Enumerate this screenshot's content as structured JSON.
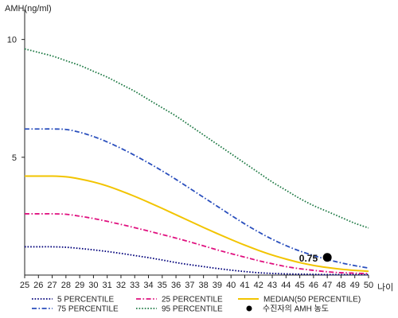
{
  "chart_data": {
    "type": "line",
    "ylabel": "AMH(ng/ml)",
    "xlabel": "나이",
    "xlim": [
      25,
      50
    ],
    "ylim": [
      0,
      11
    ],
    "yticks": [
      5,
      10
    ],
    "x": [
      25,
      26,
      27,
      28,
      29,
      30,
      31,
      32,
      33,
      34,
      35,
      36,
      37,
      38,
      39,
      40,
      41,
      42,
      43,
      44,
      45,
      46,
      47,
      48,
      49,
      50
    ],
    "grid": false,
    "legend_position": "bottom",
    "series": [
      {
        "name": "5 PERCENTILE",
        "color": "#00007a",
        "dash": "dotted",
        "values": [
          1.2,
          1.2,
          1.2,
          1.18,
          1.13,
          1.07,
          1.0,
          0.92,
          0.83,
          0.74,
          0.64,
          0.53,
          0.44,
          0.36,
          0.28,
          0.21,
          0.15,
          0.1,
          0.07,
          0.05,
          0.04,
          0.03,
          0.02,
          0.02,
          0.02,
          0.02
        ]
      },
      {
        "name": "25 PERCENTILE",
        "color": "#e0107f",
        "dash": "dash-dot",
        "values": [
          2.6,
          2.6,
          2.6,
          2.58,
          2.5,
          2.4,
          2.28,
          2.15,
          2.01,
          1.87,
          1.72,
          1.57,
          1.41,
          1.24,
          1.07,
          0.91,
          0.76,
          0.61,
          0.48,
          0.36,
          0.27,
          0.2,
          0.14,
          0.1,
          0.08,
          0.06
        ]
      },
      {
        "name": "75 PERCENTILE",
        "color": "#2a4fbd",
        "dash": "dash-dot",
        "values": [
          6.2,
          6.2,
          6.2,
          6.18,
          6.06,
          5.88,
          5.65,
          5.38,
          5.08,
          4.76,
          4.42,
          4.06,
          3.68,
          3.3,
          2.92,
          2.54,
          2.17,
          1.83,
          1.52,
          1.25,
          1.02,
          0.83,
          0.66,
          0.52,
          0.4,
          0.3
        ]
      },
      {
        "name": "95 PERCENTILE",
        "color": "#1f7a45",
        "dash": "dotted",
        "values": [
          9.6,
          9.45,
          9.3,
          9.1,
          8.9,
          8.65,
          8.4,
          8.1,
          7.8,
          7.45,
          7.1,
          6.75,
          6.35,
          5.95,
          5.55,
          5.15,
          4.75,
          4.35,
          3.95,
          3.6,
          3.25,
          2.95,
          2.7,
          2.45,
          2.2,
          2.0
        ]
      },
      {
        "name": "MEDIAN(50 PERCENTILE)",
        "color": "#f2c400",
        "dash": "solid",
        "values": [
          4.2,
          4.2,
          4.2,
          4.17,
          4.08,
          3.95,
          3.78,
          3.57,
          3.34,
          3.09,
          2.83,
          2.56,
          2.29,
          2.02,
          1.76,
          1.51,
          1.27,
          1.05,
          0.85,
          0.68,
          0.53,
          0.41,
          0.32,
          0.25,
          0.2,
          0.16
        ]
      }
    ],
    "marker": {
      "name": "수진자의 AMH 농도",
      "x": 47,
      "y": 0.75,
      "label": "0.75",
      "color": "#000000"
    }
  }
}
